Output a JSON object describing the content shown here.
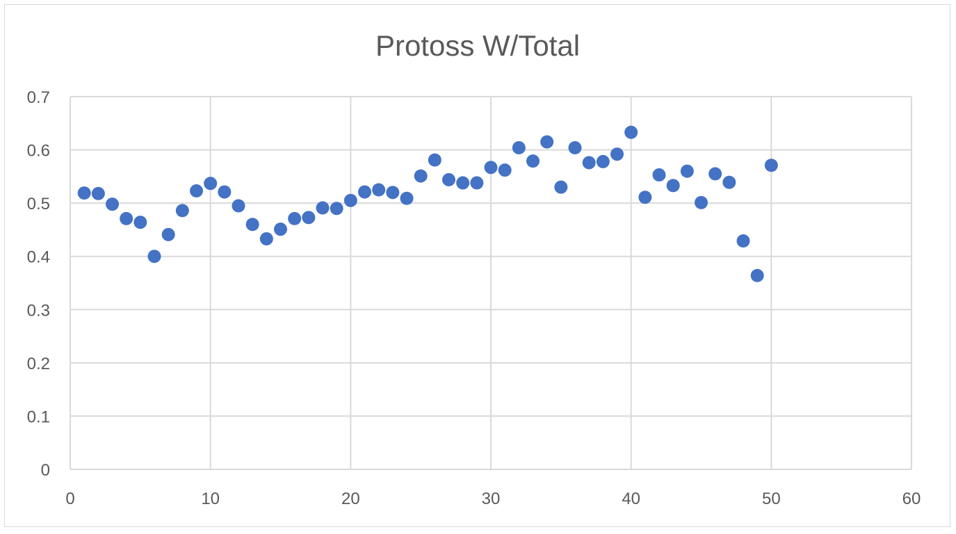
{
  "chart_data": {
    "type": "scatter",
    "title": "Protoss W/Total",
    "xlabel": "",
    "ylabel": "",
    "xlim": [
      0,
      60
    ],
    "ylim": [
      0,
      0.7
    ],
    "x_ticks": [
      "0",
      "10",
      "20",
      "30",
      "40",
      "50",
      "60"
    ],
    "y_ticks": [
      "0",
      "0.1",
      "0.2",
      "0.3",
      "0.4",
      "0.5",
      "0.6",
      "0.7"
    ],
    "grid": true,
    "legend": "none",
    "marker_color": "#4472c4",
    "series": [
      {
        "x": [
          1,
          2,
          3,
          4,
          5,
          6,
          7,
          8,
          9,
          10,
          11,
          12,
          13,
          14,
          15,
          16,
          17,
          18,
          19,
          20,
          21,
          22,
          23,
          24,
          25,
          26,
          27,
          28,
          29,
          30,
          31,
          32,
          33,
          34,
          35,
          36,
          37,
          38,
          39,
          40,
          41,
          42,
          43,
          44,
          45,
          46,
          47,
          48,
          49,
          50
        ],
        "y": [
          0.519,
          0.518,
          0.498,
          0.471,
          0.464,
          0.4,
          0.441,
          0.486,
          0.523,
          0.537,
          0.521,
          0.495,
          0.46,
          0.433,
          0.451,
          0.471,
          0.473,
          0.491,
          0.49,
          0.505,
          0.521,
          0.525,
          0.52,
          0.509,
          0.551,
          0.581,
          0.544,
          0.538,
          0.538,
          0.567,
          0.562,
          0.604,
          0.579,
          0.615,
          0.53,
          0.604,
          0.576,
          0.578,
          0.592,
          0.633,
          0.511,
          0.553,
          0.533,
          0.56,
          0.501,
          0.555,
          0.539,
          0.429,
          0.364,
          0.571
        ]
      }
    ]
  }
}
